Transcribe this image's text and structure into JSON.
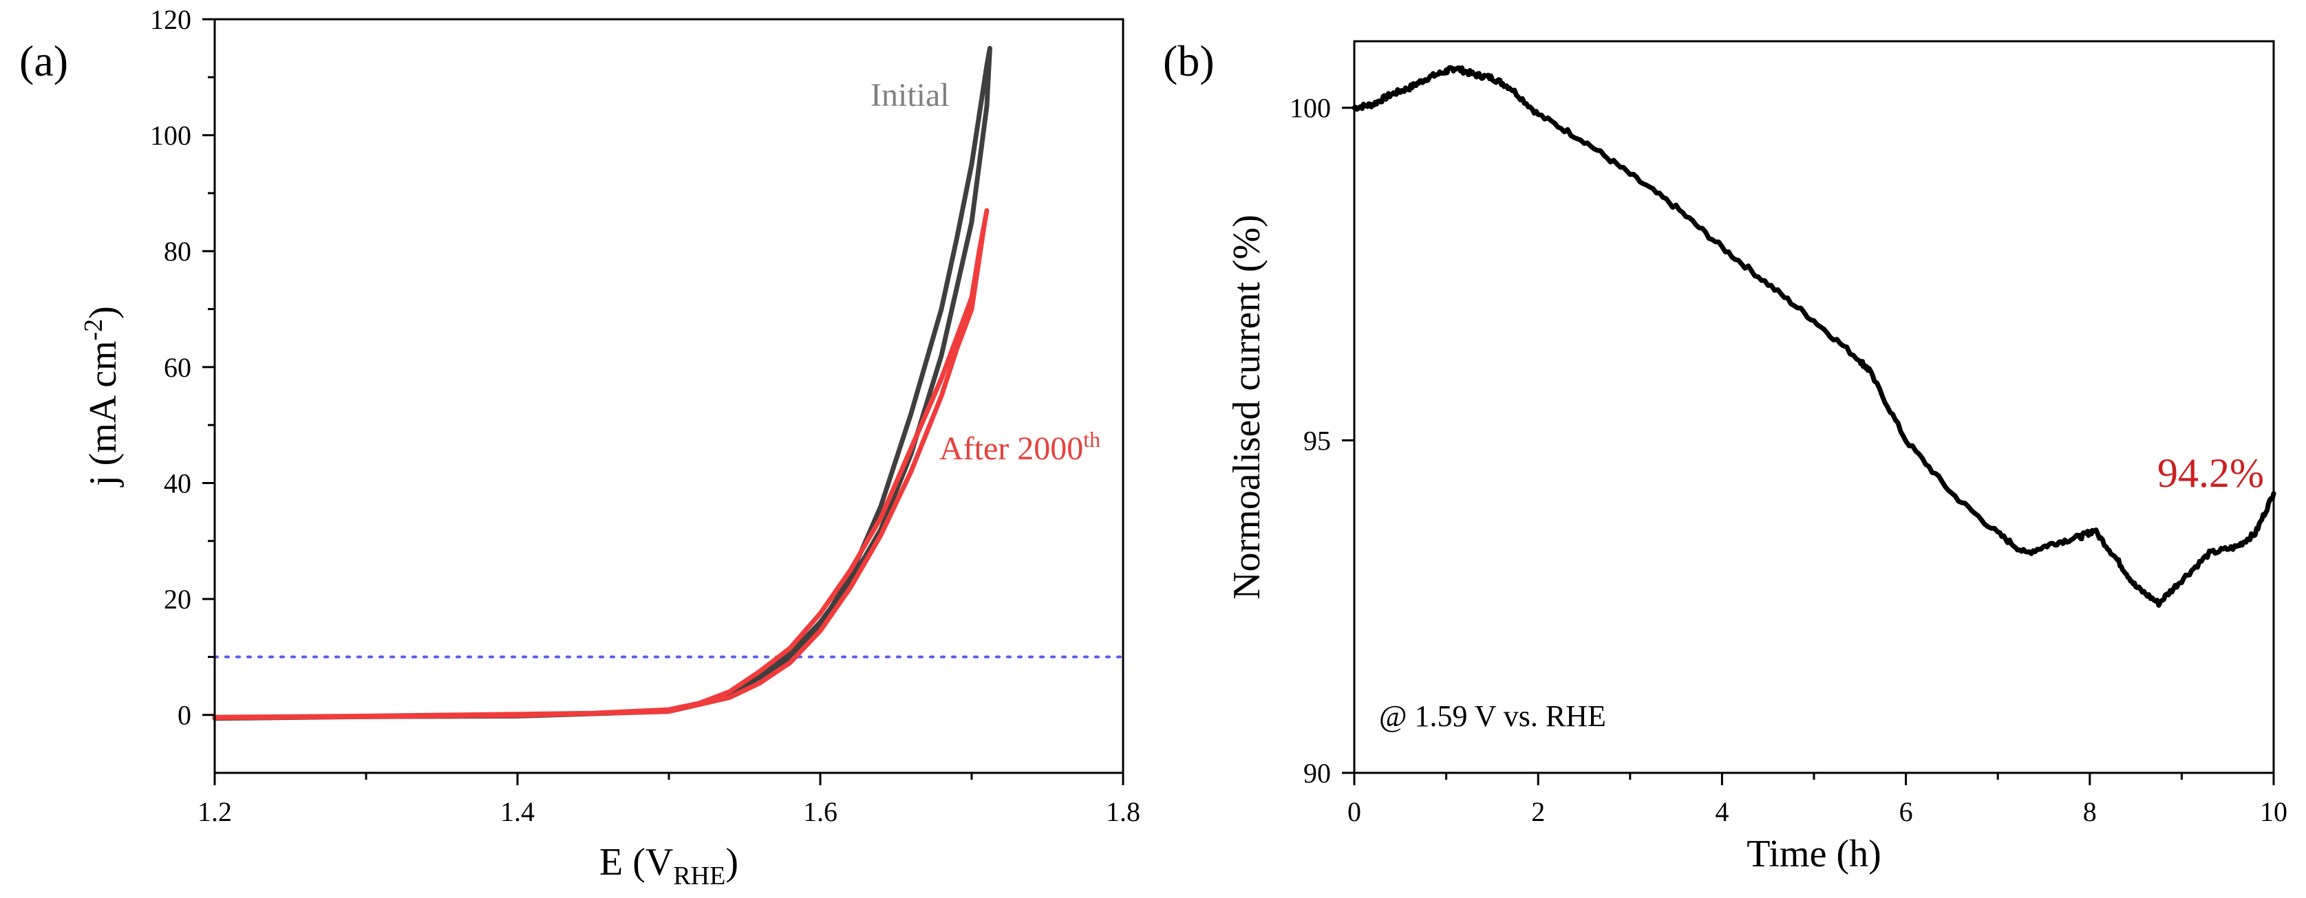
{
  "chart_data": [
    {
      "type": "line",
      "panel_label": "(a)",
      "xlabel": {
        "main": "E (V",
        "sub": "RHE",
        "end": ")"
      },
      "ylabel": {
        "main": "j (mA cm",
        "sup": "-2",
        "end": ")"
      },
      "xlim": [
        1.2,
        1.8
      ],
      "ylim": [
        -10,
        120
      ],
      "xticks": [
        1.2,
        1.4,
        1.6,
        1.8
      ],
      "xtick_labels": [
        "1.2",
        "1.4",
        "1.6",
        "1.8"
      ],
      "yticks": [
        0,
        20,
        40,
        60,
        80,
        100,
        120
      ],
      "ytick_labels": [
        "0",
        "20",
        "40",
        "60",
        "80",
        "100",
        "120"
      ],
      "reference_line": {
        "y": 10,
        "color": "#5a5af0",
        "style": "dotted"
      },
      "series": [
        {
          "name": "Initial",
          "label": "Initial",
          "color": "#3f3f3f",
          "label_color": "#808080",
          "x": [
            1.2,
            1.3,
            1.4,
            1.45,
            1.5,
            1.52,
            1.54,
            1.56,
            1.58,
            1.6,
            1.62,
            1.64,
            1.66,
            1.68,
            1.7,
            1.71,
            1.712,
            1.71,
            1.7,
            1.69,
            1.68,
            1.66,
            1.64,
            1.62,
            1.6,
            1.58,
            1.56,
            1.54,
            1.5,
            1.4,
            1.3,
            1.2
          ],
          "y": [
            -0.5,
            -0.3,
            0,
            0.2,
            0.8,
            1.8,
            3.5,
            6.5,
            10.5,
            16,
            23,
            32,
            45,
            62,
            85,
            105,
            115,
            112,
            95,
            82,
            70,
            52,
            36,
            24,
            15.5,
            9.5,
            5.5,
            3,
            0.6,
            -0.2,
            -0.3,
            -0.6
          ]
        },
        {
          "name": "After 2000th",
          "label_main": "After 2000",
          "label_sup": "th",
          "color": "#f03c3c",
          "label_color": "#e8403a",
          "x": [
            1.2,
            1.3,
            1.4,
            1.45,
            1.5,
            1.52,
            1.54,
            1.56,
            1.58,
            1.6,
            1.62,
            1.64,
            1.66,
            1.68,
            1.7,
            1.705,
            1.71,
            1.708,
            1.7,
            1.69,
            1.68,
            1.66,
            1.64,
            1.62,
            1.6,
            1.58,
            1.56,
            1.54,
            1.5,
            1.4,
            1.3,
            1.2
          ],
          "y": [
            -0.4,
            -0.2,
            0.1,
            0.3,
            0.9,
            2,
            4,
            7.5,
            11.5,
            17.5,
            25,
            34,
            46,
            58,
            72,
            80,
            87,
            84,
            70,
            63,
            55,
            42,
            31,
            22,
            14.5,
            9,
            5.5,
            3,
            0.6,
            -0.1,
            -0.3,
            -0.5
          ]
        }
      ]
    },
    {
      "type": "line",
      "panel_label": "(b)",
      "xlabel": "Time (h)",
      "ylabel": "Normoalised current (%)",
      "xlim": [
        0,
        10
      ],
      "ylim": [
        90,
        101
      ],
      "xticks": [
        0,
        2,
        4,
        6,
        8,
        10
      ],
      "xtick_labels": [
        "0",
        "2",
        "4",
        "6",
        "8",
        "10"
      ],
      "yticks": [
        90,
        95,
        100
      ],
      "ytick_labels": [
        "90",
        "95",
        "100"
      ],
      "annotation": "@ 1.59 V vs. RHE",
      "end_label": "94.2%",
      "end_label_color": "#cc1f1f",
      "series": [
        {
          "name": "Normalised current",
          "color": "#000000",
          "x": [
            0,
            0.2,
            0.4,
            0.6,
            0.8,
            1.0,
            1.1,
            1.3,
            1.5,
            1.7,
            2.0,
            2.5,
            3.0,
            3.5,
            4.0,
            4.5,
            5.0,
            5.5,
            5.6,
            6.0,
            6.5,
            7.0,
            7.3,
            7.6,
            7.9,
            8.05,
            8.3,
            8.5,
            8.75,
            9.0,
            9.3,
            9.6,
            9.8,
            10.0
          ],
          "y": [
            100.0,
            100.05,
            100.2,
            100.3,
            100.45,
            100.55,
            100.6,
            100.5,
            100.45,
            100.3,
            99.9,
            99.5,
            99.0,
            98.5,
            97.9,
            97.35,
            96.8,
            96.2,
            96.05,
            95.0,
            94.2,
            93.6,
            93.3,
            93.45,
            93.55,
            93.65,
            93.2,
            92.8,
            92.55,
            92.9,
            93.3,
            93.4,
            93.6,
            94.2
          ]
        }
      ]
    }
  ]
}
